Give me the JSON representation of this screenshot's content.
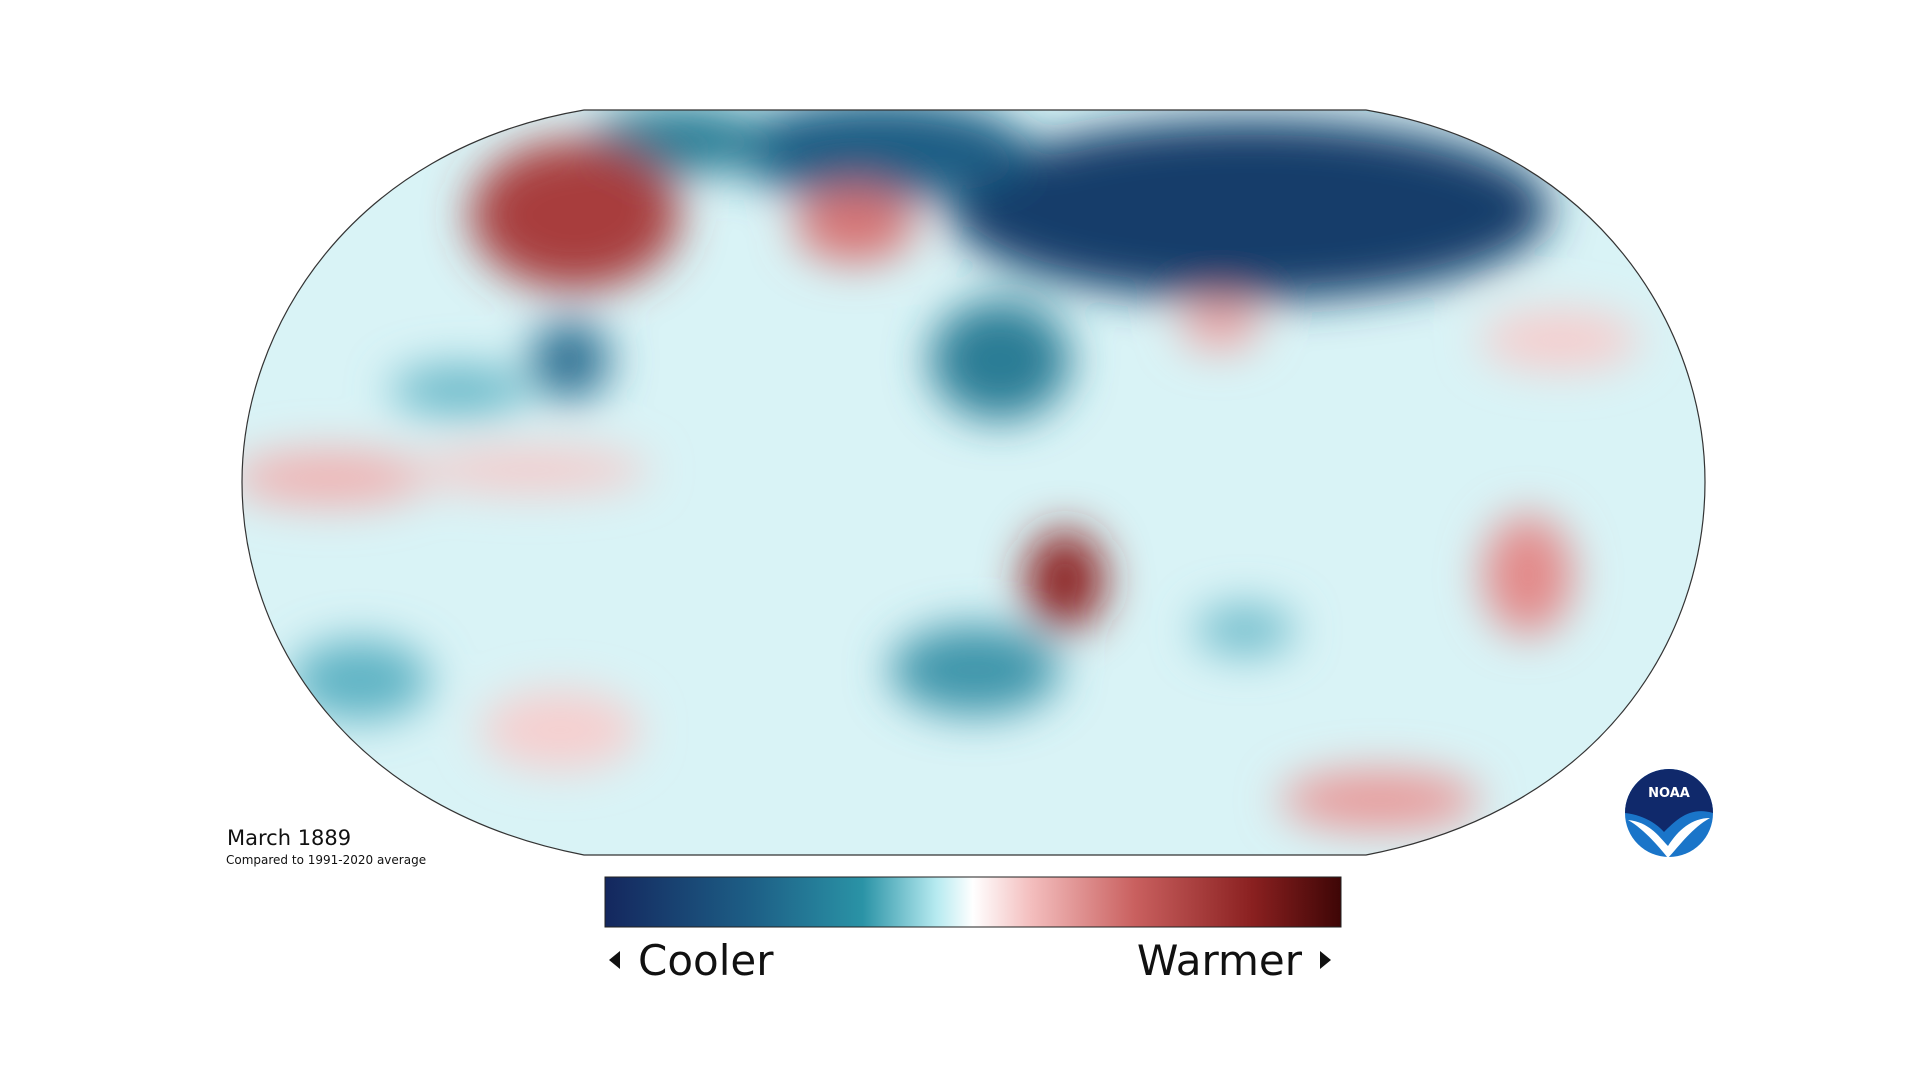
{
  "map": {
    "title": "March 1889",
    "subtitle": "Compared to 1991-2020 average"
  },
  "legend": {
    "low_label": "Cooler",
    "high_label": "Warmer"
  },
  "logo": {
    "text": "NOAA"
  }
}
